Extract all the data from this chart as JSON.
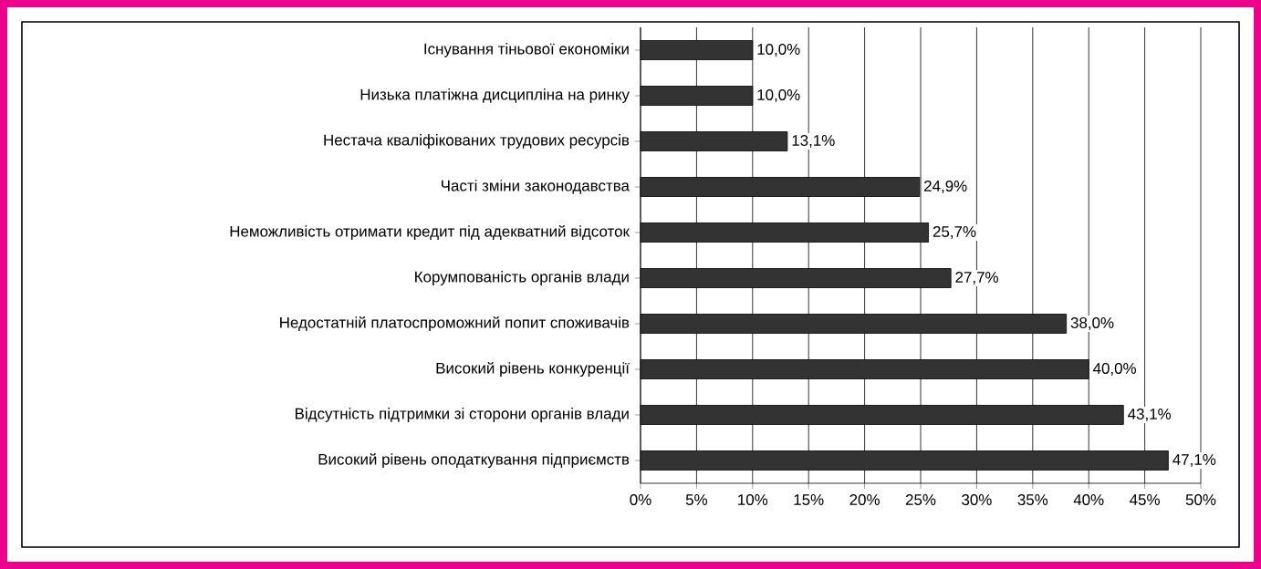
{
  "chart_data": {
    "type": "bar",
    "orientation": "horizontal",
    "categories": [
      "Існування тіньової економіки",
      "Низька платіжна дисципліна на ринку",
      "Нестача кваліфікованих трудових ресурсів",
      "Часті зміни законодавства",
      "Неможливість отримати кредит під адекватний відсоток",
      "Корумпованість органів влади",
      "Недостатній платоспроможний попит споживачів",
      "Високий рівень конкуренції",
      "Відсутність підтримки зі сторони органів влади",
      "Високий рівень оподаткування підприємств"
    ],
    "values": [
      10.0,
      10.0,
      13.1,
      24.9,
      25.7,
      27.7,
      38.0,
      40.0,
      43.1,
      47.1
    ],
    "value_labels": [
      "10,0%",
      "10,0%",
      "13,1%",
      "24,9%",
      "25,7%",
      "27,7%",
      "38,0%",
      "40,0%",
      "43,1%",
      "47,1%"
    ],
    "color": "#333333",
    "xlim": [
      0,
      50
    ],
    "xticks": [
      {
        "value": 0,
        "label": "0%"
      },
      {
        "value": 5,
        "label": "5%"
      },
      {
        "value": 10,
        "label": "10%"
      },
      {
        "value": 15,
        "label": "15%"
      },
      {
        "value": 20,
        "label": "20%"
      },
      {
        "value": 25,
        "label": "25%"
      },
      {
        "value": 30,
        "label": "30%"
      },
      {
        "value": 35,
        "label": "35%"
      },
      {
        "value": 40,
        "label": "40%"
      },
      {
        "value": 45,
        "label": "45%"
      },
      {
        "value": 50,
        "label": "50%"
      }
    ],
    "grid": "x"
  }
}
